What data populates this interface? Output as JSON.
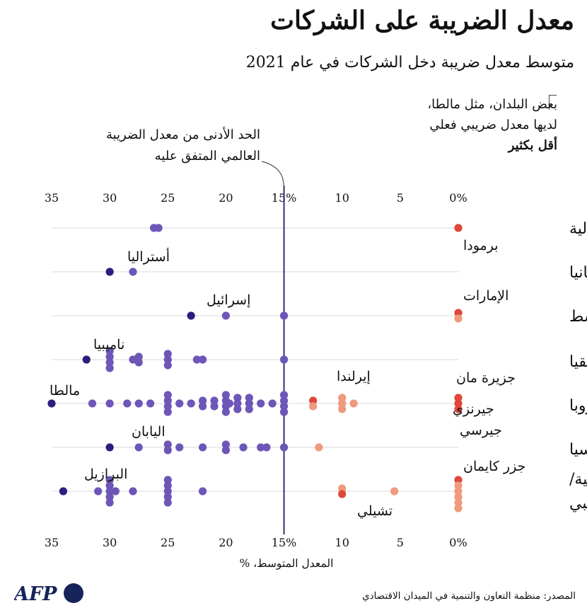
{
  "header": {
    "title": "معدل الضريبة على الشركات",
    "subtitle": "متوسط معدل ضريبة دخل الشركات في عام 2021"
  },
  "note_lines": [
    "بعض البلدان، مثل مالطا،",
    "لديها معدل ضريبي فعلي",
    "أقل بكثير"
  ],
  "min_tax_annotation": [
    "الحد الأدنى من معدل الضريبة",
    "العالمي المتفق عليه"
  ],
  "footer": {
    "source": "المصدر: منظمة التعاون والتنمية في الميدان الاقتصادي",
    "logo_text": "AFP"
  },
  "colors": {
    "dark": "#2b1e7e",
    "medium": "#6d56b8",
    "red": "#e0473a",
    "salmon": "#ef9a7c",
    "reference_line": "#3a2a7a",
    "grid": "#d8d8d8"
  },
  "chart_data": {
    "type": "scatter",
    "x_axis": {
      "label": "المعدل المتوسط، %",
      "reversed": true,
      "range": [
        0,
        35
      ],
      "ticks": [
        35,
        30,
        25,
        20,
        15,
        10,
        5,
        0
      ],
      "tick_labels": [
        "35",
        "30",
        "25",
        "20",
        "15%",
        "10",
        "5",
        "0%"
      ]
    },
    "reference_line": {
      "value": 15
    },
    "regions": [
      {
        "name": "أميركا الشمالية",
        "points": [
          {
            "v": 25.8,
            "c": "medium"
          },
          {
            "v": 26.2,
            "c": "medium"
          },
          {
            "v": 0,
            "c": "red"
          }
        ]
      },
      {
        "name": "أوقيانيا",
        "points": [
          {
            "v": 30,
            "c": "dark"
          },
          {
            "v": 28,
            "c": "medium"
          }
        ]
      },
      {
        "name": "الشرق الأوسط",
        "points": [
          {
            "v": 23,
            "c": "dark"
          },
          {
            "v": 20,
            "c": "medium"
          },
          {
            "v": 15,
            "c": "medium"
          },
          {
            "v": 0,
            "c": "red"
          },
          {
            "v": 0,
            "c": "salmon"
          }
        ]
      },
      {
        "name": "إفريقيا",
        "points": [
          {
            "v": 32,
            "c": "dark"
          },
          {
            "v": 30,
            "c": "medium"
          },
          {
            "v": 30,
            "c": "medium"
          },
          {
            "v": 30,
            "c": "medium"
          },
          {
            "v": 30,
            "c": "medium"
          },
          {
            "v": 27.5,
            "c": "medium"
          },
          {
            "v": 28,
            "c": "medium"
          },
          {
            "v": 27.5,
            "c": "medium"
          },
          {
            "v": 25,
            "c": "medium"
          },
          {
            "v": 25,
            "c": "medium"
          },
          {
            "v": 25,
            "c": "medium"
          },
          {
            "v": 22,
            "c": "medium"
          },
          {
            "v": 22.5,
            "c": "medium"
          },
          {
            "v": 15,
            "c": "medium"
          }
        ]
      },
      {
        "name": "أوروبا",
        "points": [
          {
            "v": 35,
            "c": "dark"
          },
          {
            "v": 31.5,
            "c": "medium"
          },
          {
            "v": 30,
            "c": "medium"
          },
          {
            "v": 28.5,
            "c": "medium"
          },
          {
            "v": 27.5,
            "c": "medium"
          },
          {
            "v": 26.5,
            "c": "medium"
          },
          {
            "v": 25,
            "c": "medium"
          },
          {
            "v": 25,
            "c": "medium"
          },
          {
            "v": 25,
            "c": "medium"
          },
          {
            "v": 25,
            "c": "medium"
          },
          {
            "v": 24,
            "c": "medium"
          },
          {
            "v": 23,
            "c": "medium"
          },
          {
            "v": 22,
            "c": "medium"
          },
          {
            "v": 22,
            "c": "medium"
          },
          {
            "v": 21,
            "c": "medium"
          },
          {
            "v": 21,
            "c": "medium"
          },
          {
            "v": 20,
            "c": "medium"
          },
          {
            "v": 20,
            "c": "medium"
          },
          {
            "v": 20,
            "c": "medium"
          },
          {
            "v": 20,
            "c": "medium"
          },
          {
            "v": 19.7,
            "c": "medium"
          },
          {
            "v": 19,
            "c": "medium"
          },
          {
            "v": 19,
            "c": "medium"
          },
          {
            "v": 19,
            "c": "medium"
          },
          {
            "v": 18,
            "c": "medium"
          },
          {
            "v": 18,
            "c": "medium"
          },
          {
            "v": 18,
            "c": "medium"
          },
          {
            "v": 17,
            "c": "medium"
          },
          {
            "v": 16,
            "c": "medium"
          },
          {
            "v": 15,
            "c": "medium"
          },
          {
            "v": 15,
            "c": "medium"
          },
          {
            "v": 15,
            "c": "medium"
          },
          {
            "v": 15,
            "c": "medium"
          },
          {
            "v": 12.5,
            "c": "red"
          },
          {
            "v": 12.5,
            "c": "salmon"
          },
          {
            "v": 10,
            "c": "salmon"
          },
          {
            "v": 10,
            "c": "salmon"
          },
          {
            "v": 10,
            "c": "salmon"
          },
          {
            "v": 9,
            "c": "salmon"
          },
          {
            "v": 0,
            "c": "red"
          },
          {
            "v": 0,
            "c": "red"
          },
          {
            "v": 0,
            "c": "red"
          }
        ]
      },
      {
        "name": "آسيا",
        "points": [
          {
            "v": 30,
            "c": "dark"
          },
          {
            "v": 27.5,
            "c": "medium"
          },
          {
            "v": 25,
            "c": "medium"
          },
          {
            "v": 25,
            "c": "medium"
          },
          {
            "v": 24,
            "c": "medium"
          },
          {
            "v": 22,
            "c": "medium"
          },
          {
            "v": 20,
            "c": "medium"
          },
          {
            "v": 20,
            "c": "medium"
          },
          {
            "v": 18.5,
            "c": "medium"
          },
          {
            "v": 17,
            "c": "medium"
          },
          {
            "v": 16.5,
            "c": "medium"
          },
          {
            "v": 15,
            "c": "medium"
          },
          {
            "v": 12,
            "c": "salmon"
          }
        ]
      },
      {
        "name": "أميركا اللاتينية/الكاريبي",
        "points": [
          {
            "v": 34,
            "c": "dark"
          },
          {
            "v": 31,
            "c": "medium"
          },
          {
            "v": 30,
            "c": "medium"
          },
          {
            "v": 30,
            "c": "medium"
          },
          {
            "v": 30,
            "c": "medium"
          },
          {
            "v": 30,
            "c": "medium"
          },
          {
            "v": 30,
            "c": "medium"
          },
          {
            "v": 29.5,
            "c": "medium"
          },
          {
            "v": 28,
            "c": "medium"
          },
          {
            "v": 25,
            "c": "medium"
          },
          {
            "v": 25,
            "c": "medium"
          },
          {
            "v": 25,
            "c": "medium"
          },
          {
            "v": 25,
            "c": "medium"
          },
          {
            "v": 25,
            "c": "medium"
          },
          {
            "v": 22,
            "c": "medium"
          },
          {
            "v": 10,
            "c": "salmon"
          },
          {
            "v": 10,
            "c": "red"
          },
          {
            "v": 5.5,
            "c": "salmon"
          },
          {
            "v": 0,
            "c": "red"
          },
          {
            "v": 0,
            "c": "salmon"
          },
          {
            "v": 0,
            "c": "salmon"
          },
          {
            "v": 0,
            "c": "salmon"
          },
          {
            "v": 0,
            "c": "salmon"
          },
          {
            "v": 0,
            "c": "salmon"
          }
        ]
      }
    ],
    "country_labels": [
      "برمودا",
      "أستراليا",
      "إسرائيل",
      "الإمارات",
      "ناميبيا",
      "إيرلندا",
      "جزيرة مان",
      "مالطا",
      "جيرنزي",
      "جيرسي",
      "اليابان",
      "جزر كايمان",
      "البرازيل",
      "تشيلي"
    ]
  }
}
